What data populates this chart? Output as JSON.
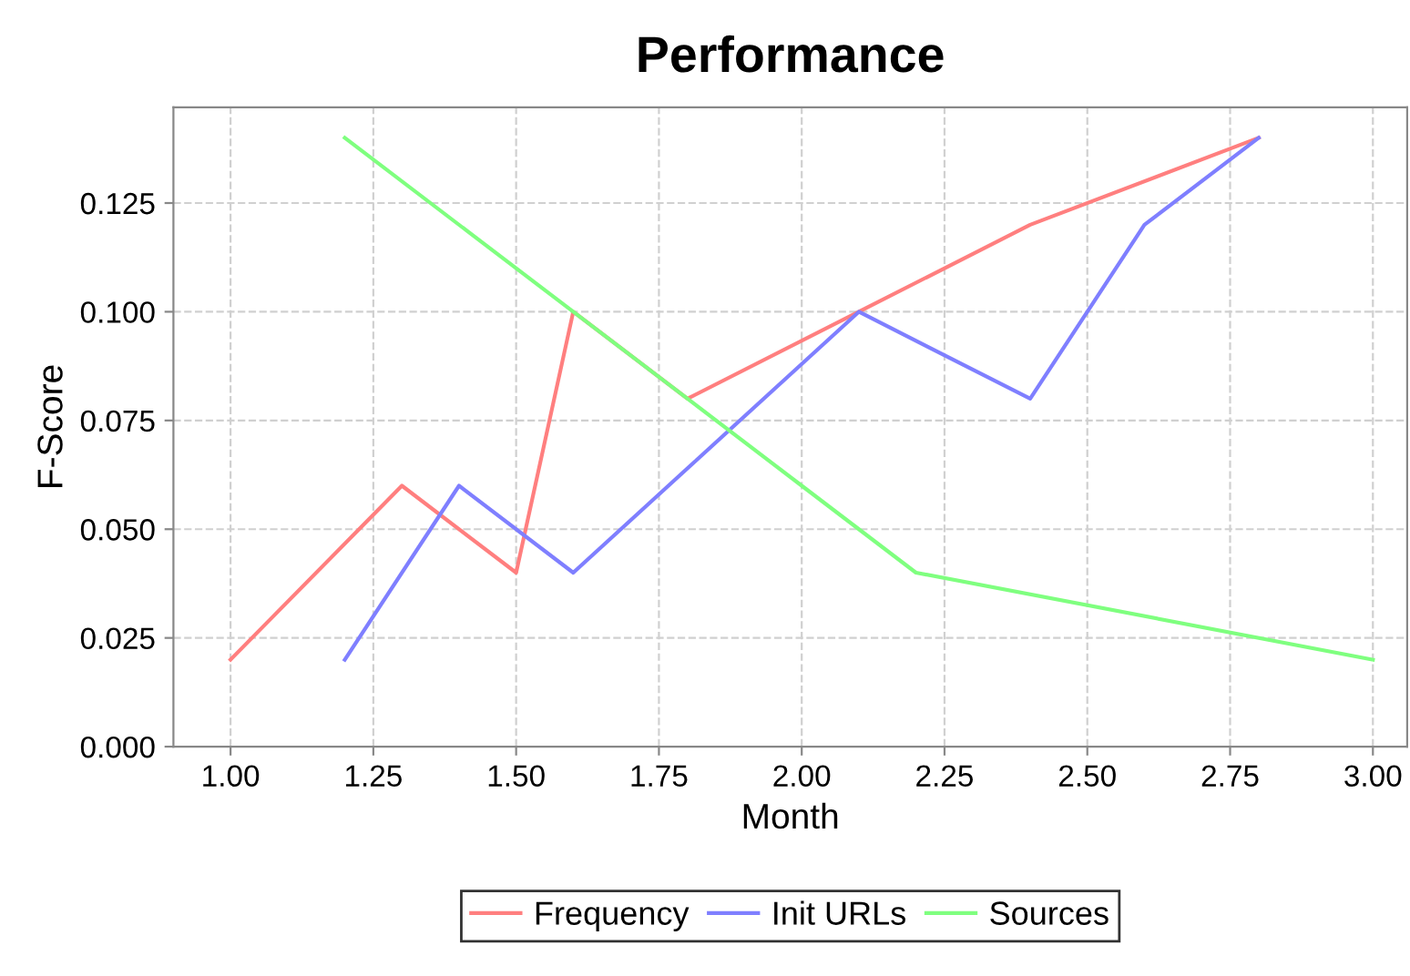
{
  "chart_data": {
    "type": "line",
    "title": "Performance",
    "xlabel": "Month",
    "ylabel": "F-Score",
    "series": [
      {
        "name": "Frequency",
        "color": "#ff7f7f",
        "x": [
          1.0,
          1.3,
          1.5,
          1.6,
          1.8,
          2.1,
          2.4,
          2.8
        ],
        "values": [
          0.02,
          0.06,
          0.04,
          0.1,
          0.08,
          0.1,
          0.12,
          0.14
        ]
      },
      {
        "name": "Init URLs",
        "color": "#7f7fff",
        "x": [
          1.2,
          1.4,
          1.6,
          2.1,
          2.4,
          2.6,
          2.8
        ],
        "values": [
          0.02,
          0.06,
          0.04,
          0.1,
          0.08,
          0.12,
          0.14
        ]
      },
      {
        "name": "Sources",
        "color": "#7fff7f",
        "x": [
          1.2,
          1.6,
          1.8,
          2.0,
          2.2,
          3.0
        ],
        "values": [
          0.14,
          0.1,
          0.08,
          0.06,
          0.04,
          0.02
        ]
      }
    ],
    "xlim": [
      0.9,
      3.06
    ],
    "ylim": [
      0,
      0.147
    ],
    "xticks": [
      {
        "value": 1.0,
        "label": "1.00"
      },
      {
        "value": 1.25,
        "label": "1.25"
      },
      {
        "value": 1.5,
        "label": "1.50"
      },
      {
        "value": 1.75,
        "label": "1.75"
      },
      {
        "value": 2.0,
        "label": "2.00"
      },
      {
        "value": 2.25,
        "label": "2.25"
      },
      {
        "value": 2.5,
        "label": "2.50"
      },
      {
        "value": 2.75,
        "label": "2.75"
      },
      {
        "value": 3.0,
        "label": "3.00"
      }
    ],
    "yticks": [
      {
        "value": 0,
        "label": "0.000"
      },
      {
        "value": 0.025,
        "label": "0.025"
      },
      {
        "value": 0.05,
        "label": "0.050"
      },
      {
        "value": 0.075,
        "label": "0.075"
      },
      {
        "value": 0.1,
        "label": "0.100"
      },
      {
        "value": 0.125,
        "label": "0.125"
      }
    ],
    "grid": true,
    "legend": "bottom",
    "line_style": "solid",
    "marker": "none"
  }
}
